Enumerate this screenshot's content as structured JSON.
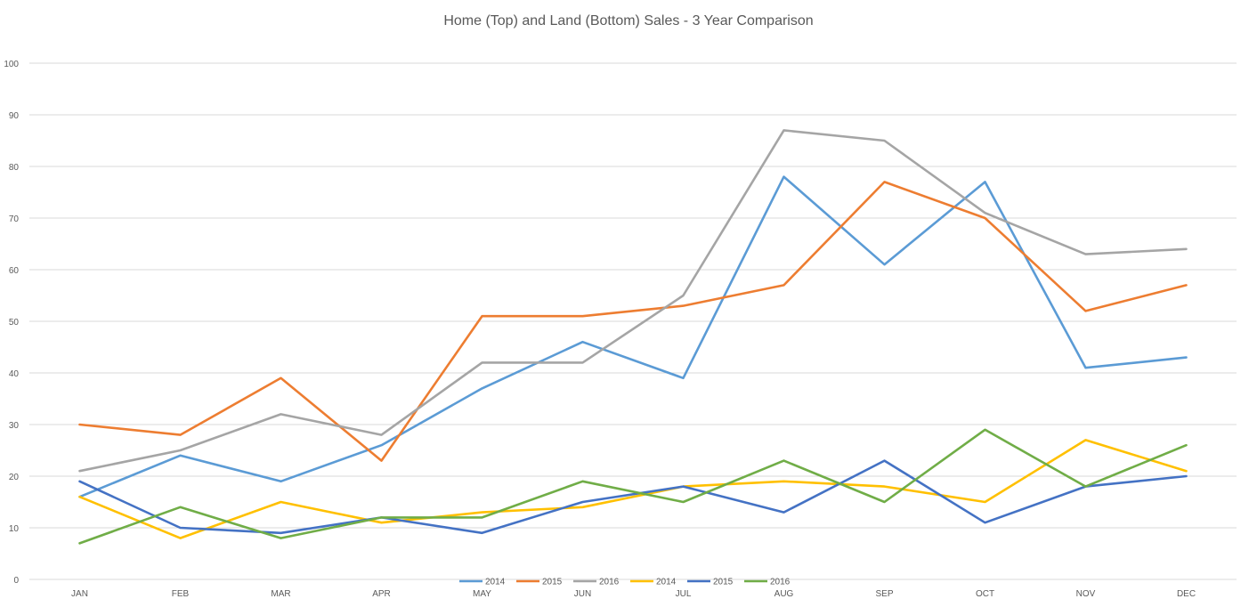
{
  "chart_data": {
    "type": "line",
    "title": "Home (Top) and Land (Bottom) Sales - 3 Year Comparison",
    "xlabel": "",
    "ylabel": "",
    "categories": [
      "JAN",
      "FEB",
      "MAR",
      "APR",
      "MAY",
      "JUN",
      "JUL",
      "AUG",
      "SEP",
      "OCT",
      "NOV",
      "DEC"
    ],
    "ylim": [
      0,
      100
    ],
    "yticks": [
      0,
      10,
      20,
      30,
      40,
      50,
      60,
      70,
      80,
      90,
      100
    ],
    "grid": true,
    "legend_position": "bottom",
    "series": [
      {
        "name": "2014",
        "color": "#5b9bd5",
        "values": [
          16,
          24,
          19,
          26,
          37,
          46,
          39,
          78,
          61,
          77,
          41,
          43
        ]
      },
      {
        "name": "2015",
        "color": "#ed7d31",
        "values": [
          30,
          28,
          39,
          23,
          51,
          51,
          53,
          57,
          77,
          70,
          52,
          57
        ]
      },
      {
        "name": "2016",
        "color": "#a5a5a5",
        "values": [
          21,
          25,
          32,
          28,
          42,
          42,
          55,
          87,
          85,
          71,
          63,
          64
        ]
      },
      {
        "name": "2014",
        "color": "#ffc000",
        "values": [
          16,
          8,
          15,
          11,
          13,
          14,
          18,
          19,
          18,
          15,
          27,
          21
        ]
      },
      {
        "name": "2015",
        "color": "#4472c4",
        "values": [
          19,
          10,
          9,
          12,
          9,
          15,
          18,
          13,
          23,
          11,
          18,
          20
        ]
      },
      {
        "name": "2016",
        "color": "#70ad47",
        "values": [
          7,
          14,
          8,
          12,
          12,
          19,
          15,
          23,
          15,
          29,
          18,
          26
        ]
      }
    ]
  }
}
